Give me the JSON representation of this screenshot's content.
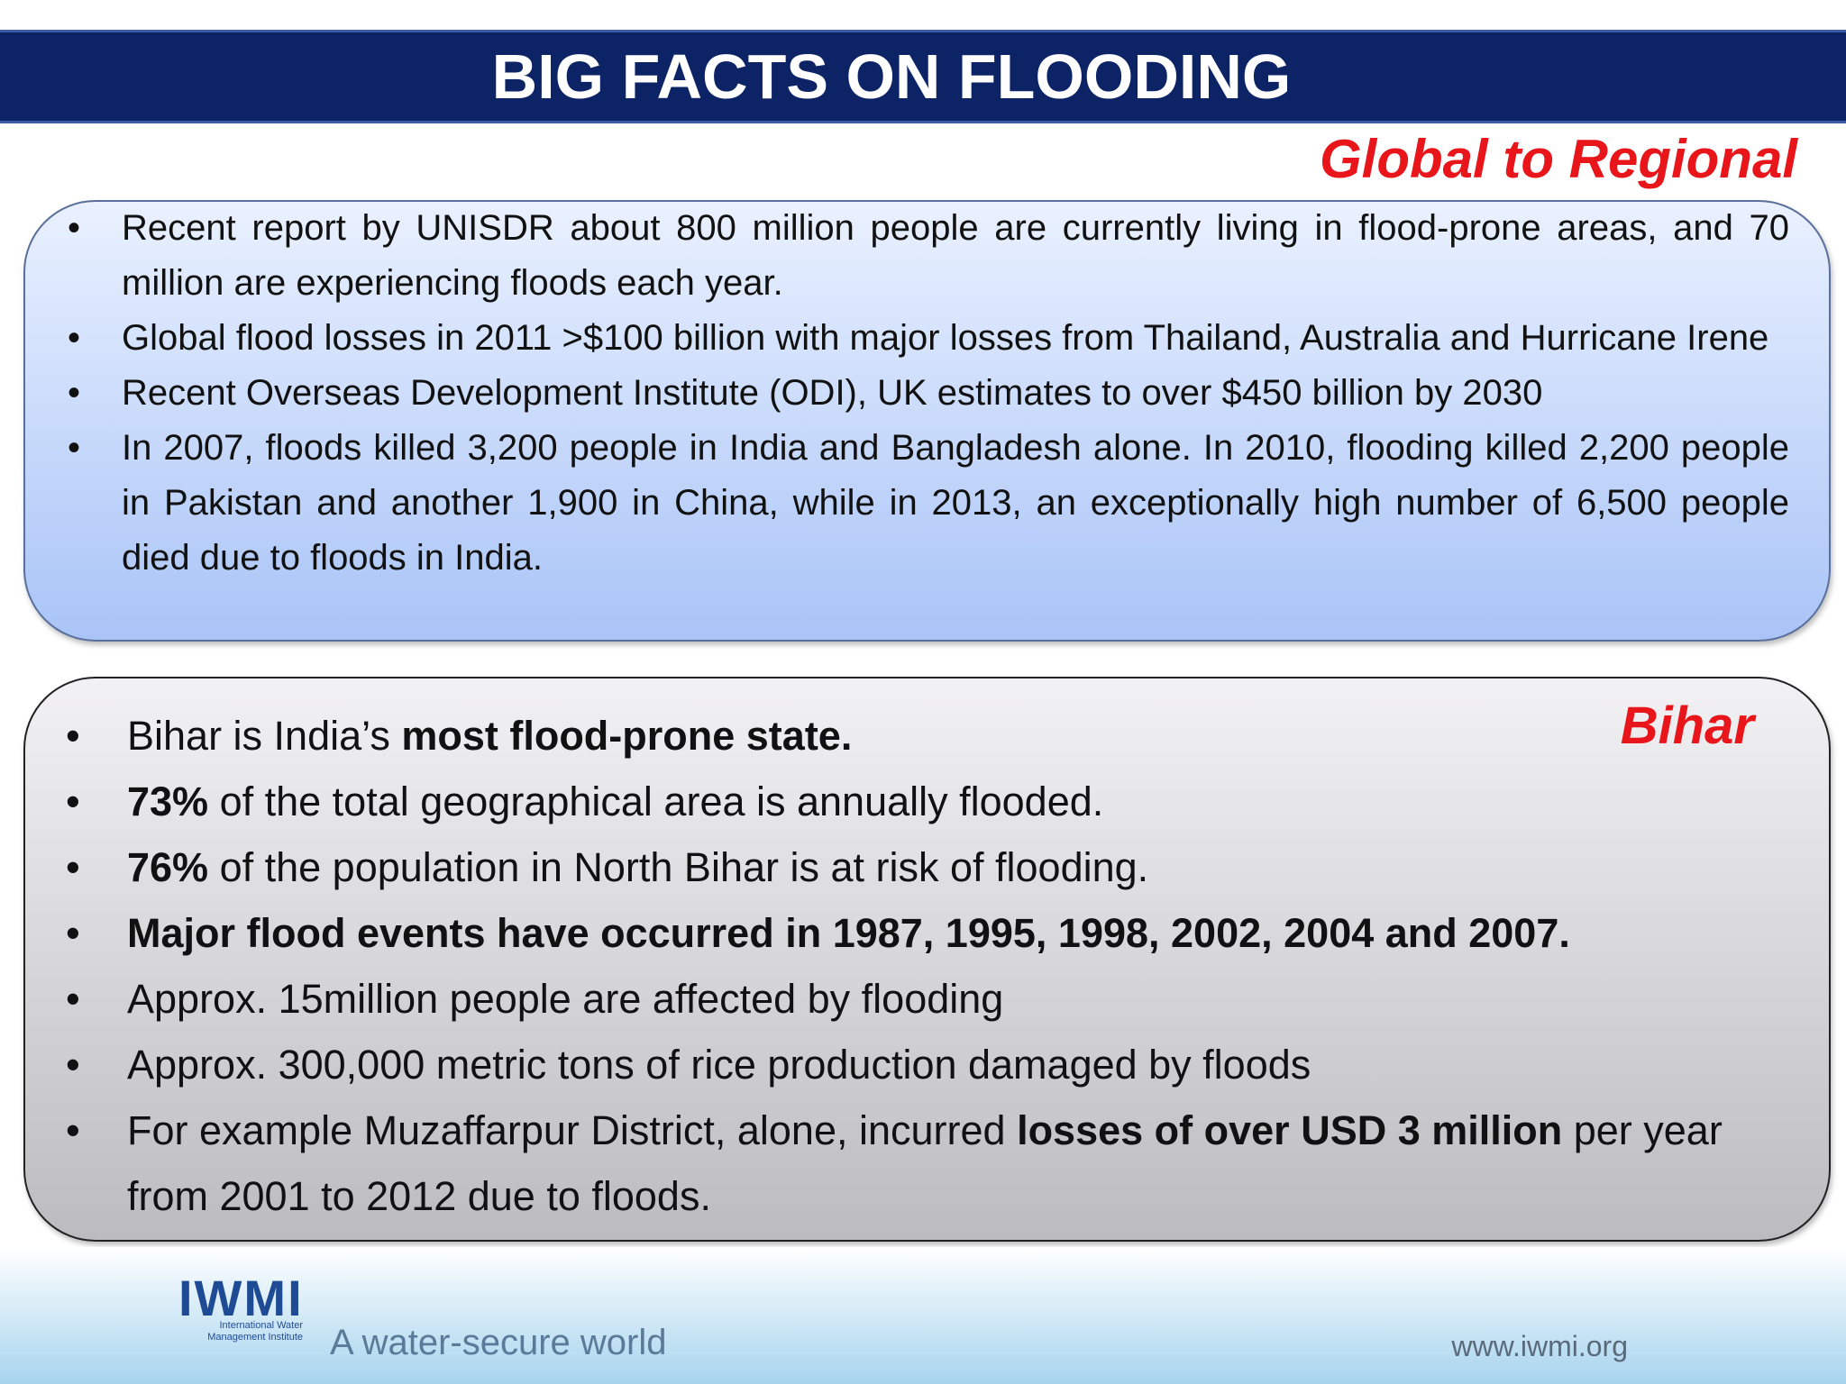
{
  "header": {
    "title": "BIG FACTS ON FLOODING"
  },
  "global": {
    "heading": "Global to Regional",
    "bullets": [
      [
        {
          "text": "Recent report by UNISDR about 800 million people are currently living in flood-prone areas, and 70 million are experiencing floods each year."
        }
      ],
      [
        {
          "text": "Global flood losses in 2011 >$100 billion with major losses from Thailand, Australia and Hurricane Irene"
        }
      ],
      [
        {
          "text": "Recent Overseas Development Institute (ODI), UK estimates to over $450 billion by 2030"
        }
      ],
      [
        {
          "text": "In 2007, floods killed 3,200 people in India and Bangladesh alone. In 2010, flooding killed 2,200 people in Pakistan and another 1,900 in China, while in 2013, an exceptionally high number of 6,500 people died due to floods in India."
        }
      ]
    ]
  },
  "bihar": {
    "heading": "Bihar",
    "bullets": [
      [
        {
          "text": "Bihar is India’s "
        },
        {
          "text": "most flood-prone state.",
          "bold": true
        }
      ],
      [
        {
          "text": "73%",
          "bold": true
        },
        {
          "text": " of the total geographical area is annually flooded."
        }
      ],
      [
        {
          "text": "76%",
          "bold": true
        },
        {
          "text": " of the population in North Bihar is at risk of flooding."
        }
      ],
      [
        {
          "text": "Major flood events have occurred in 1987, 1995, 1998, 2002, 2004 and 2007.",
          "bold": true
        }
      ],
      [
        {
          "text": "Approx. 15million people are affected by flooding"
        }
      ],
      [
        {
          "text": "Approx. 300,000 metric tons of rice production damaged by floods"
        }
      ],
      [
        {
          "text": "For example Muzaffarpur District, alone, incurred "
        },
        {
          "text": "losses of over USD 3 million",
          "bold": true
        },
        {
          "text": " per year from 2001 to 2012 due to floods."
        }
      ]
    ]
  },
  "footer": {
    "logo": "IWMI",
    "logo_subtitle": "International Water Management Institute",
    "tagline": "A water-secure world",
    "url": "www.iwmi.org"
  }
}
